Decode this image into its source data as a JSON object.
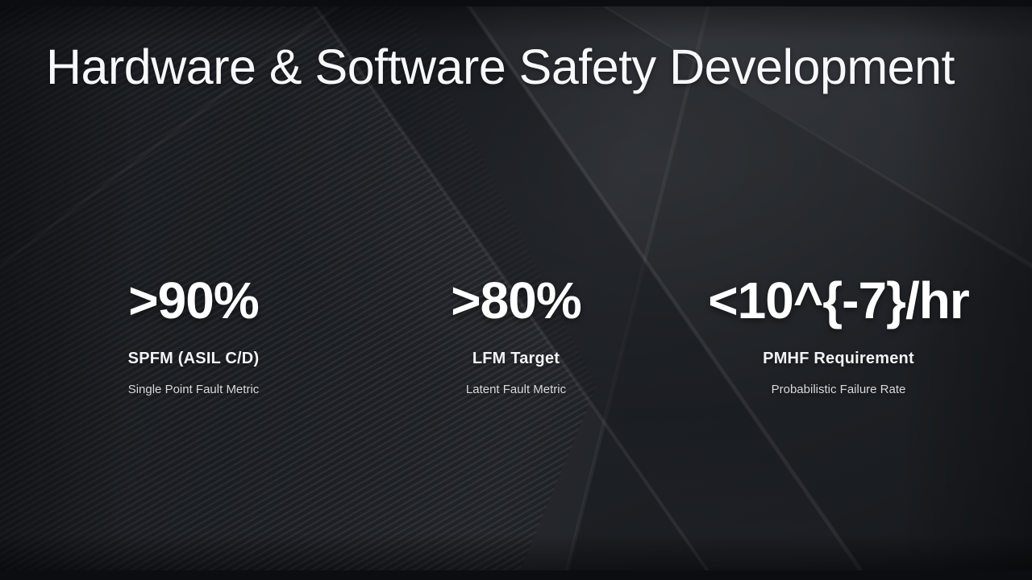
{
  "slide": {
    "title": "Hardware & Software Safety Development",
    "stats": [
      {
        "value": ">90%",
        "label": "SPFM (ASIL C/D)",
        "description": "Single Point Fault Metric"
      },
      {
        "value": ">80%",
        "label": "LFM Target",
        "description": "Latent Fault Metric"
      },
      {
        "value": "<10^{-7}/hr",
        "label": "PMHF Requirement",
        "description": "Probabilistic Failure Rate"
      }
    ],
    "colors": {
      "background_dark": "#17191d",
      "background_light_panel": "#25282d",
      "title_text": "#f7f8f9",
      "value_text": "#ffffff",
      "label_text": "#f2f3f5",
      "description_text": "#d7d9db"
    }
  }
}
